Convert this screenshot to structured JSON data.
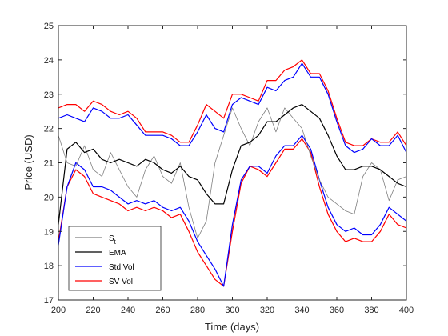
{
  "chart_data": {
    "type": "line",
    "xlabel": "Time (days)",
    "ylabel": "Price (USD)",
    "xlim": [
      200,
      400
    ],
    "ylim": [
      17,
      25
    ],
    "xticks": [
      200,
      220,
      240,
      260,
      280,
      300,
      320,
      340,
      360,
      380,
      400
    ],
    "yticks": [
      17,
      18,
      19,
      20,
      21,
      22,
      23,
      24,
      25
    ],
    "grid": false,
    "legend_position": "bottom-left",
    "colors": {
      "price": "#7f7f7f",
      "ema": "#000000",
      "std_band": "#0000ff",
      "sv_band": "#ff0000"
    },
    "legend": [
      {
        "label": "S",
        "subscript": "t",
        "color": "#7f7f7f"
      },
      {
        "label": "EMA",
        "color": "#000000"
      },
      {
        "label": "Std Vol",
        "color": "#0000ff"
      },
      {
        "label": "SV Vol",
        "color": "#ff0000"
      }
    ],
    "x": [
      200,
      205,
      210,
      215,
      220,
      225,
      230,
      235,
      240,
      245,
      250,
      255,
      260,
      265,
      270,
      275,
      280,
      285,
      290,
      295,
      300,
      305,
      310,
      315,
      320,
      325,
      330,
      335,
      340,
      345,
      350,
      355,
      360,
      365,
      370,
      375,
      380,
      385,
      390,
      395,
      400
    ],
    "series": [
      {
        "key": "price",
        "values": [
          21.8,
          21.0,
          20.9,
          21.5,
          20.8,
          20.6,
          21.3,
          20.8,
          20.3,
          20.0,
          20.8,
          21.2,
          20.6,
          20.4,
          21.0,
          19.7,
          18.8,
          19.3,
          21.0,
          21.8,
          22.6,
          22.0,
          21.5,
          22.2,
          22.6,
          21.9,
          22.6,
          22.3,
          22.0,
          21.2,
          20.5,
          20.0,
          19.8,
          19.6,
          19.5,
          20.6,
          21.0,
          20.8,
          19.9,
          20.5,
          20.6
        ]
      },
      {
        "key": "ema",
        "values": [
          19.2,
          21.4,
          21.6,
          21.3,
          21.4,
          21.1,
          21.0,
          21.1,
          21.0,
          20.9,
          21.1,
          21.0,
          20.8,
          20.7,
          20.9,
          20.6,
          20.5,
          20.1,
          19.8,
          19.8,
          20.8,
          21.5,
          21.6,
          21.8,
          22.2,
          22.2,
          22.4,
          22.6,
          22.7,
          22.5,
          22.3,
          21.8,
          21.2,
          20.8,
          20.8,
          20.9,
          20.9,
          20.8,
          20.6,
          20.4,
          20.3
        ]
      },
      {
        "key": "std_upper",
        "values": [
          22.3,
          22.4,
          22.3,
          22.2,
          22.6,
          22.5,
          22.3,
          22.3,
          22.4,
          22.1,
          21.8,
          21.8,
          21.8,
          21.7,
          21.5,
          21.5,
          21.9,
          22.4,
          22.0,
          21.9,
          22.7,
          22.9,
          22.8,
          22.7,
          23.2,
          23.1,
          23.4,
          23.5,
          23.9,
          23.5,
          23.5,
          23.0,
          22.2,
          21.5,
          21.3,
          21.4,
          21.7,
          21.5,
          21.5,
          21.8,
          21.3
        ]
      },
      {
        "key": "std_lower",
        "values": [
          18.6,
          20.3,
          21.0,
          20.8,
          20.3,
          20.3,
          20.2,
          20.0,
          19.8,
          19.9,
          19.8,
          19.9,
          19.7,
          19.6,
          19.7,
          19.3,
          18.7,
          18.3,
          17.9,
          17.4,
          19.2,
          20.5,
          20.9,
          20.9,
          20.7,
          21.2,
          21.5,
          21.5,
          21.8,
          21.4,
          20.5,
          19.7,
          19.2,
          19.0,
          19.1,
          18.9,
          18.9,
          19.2,
          19.7,
          19.5,
          19.3
        ]
      },
      {
        "key": "sv_upper",
        "values": [
          22.6,
          22.7,
          22.7,
          22.5,
          22.8,
          22.7,
          22.5,
          22.4,
          22.5,
          22.3,
          21.9,
          21.9,
          21.9,
          21.8,
          21.6,
          21.6,
          22.1,
          22.7,
          22.5,
          22.3,
          23.0,
          23.0,
          22.9,
          22.8,
          23.4,
          23.4,
          23.7,
          23.8,
          24.0,
          23.6,
          23.6,
          23.1,
          22.3,
          21.6,
          21.5,
          21.5,
          21.7,
          21.6,
          21.6,
          21.9,
          21.5
        ]
      },
      {
        "key": "sv_lower",
        "values": [
          18.7,
          20.3,
          20.8,
          20.6,
          20.1,
          20.0,
          19.9,
          19.8,
          19.6,
          19.7,
          19.6,
          19.7,
          19.6,
          19.4,
          19.5,
          19.0,
          18.4,
          18.0,
          17.6,
          17.4,
          19.0,
          20.4,
          20.9,
          20.8,
          20.6,
          21.0,
          21.4,
          21.4,
          21.7,
          21.3,
          20.3,
          19.5,
          19.0,
          18.7,
          18.8,
          18.7,
          18.7,
          19.0,
          19.5,
          19.2,
          19.1
        ]
      }
    ]
  }
}
